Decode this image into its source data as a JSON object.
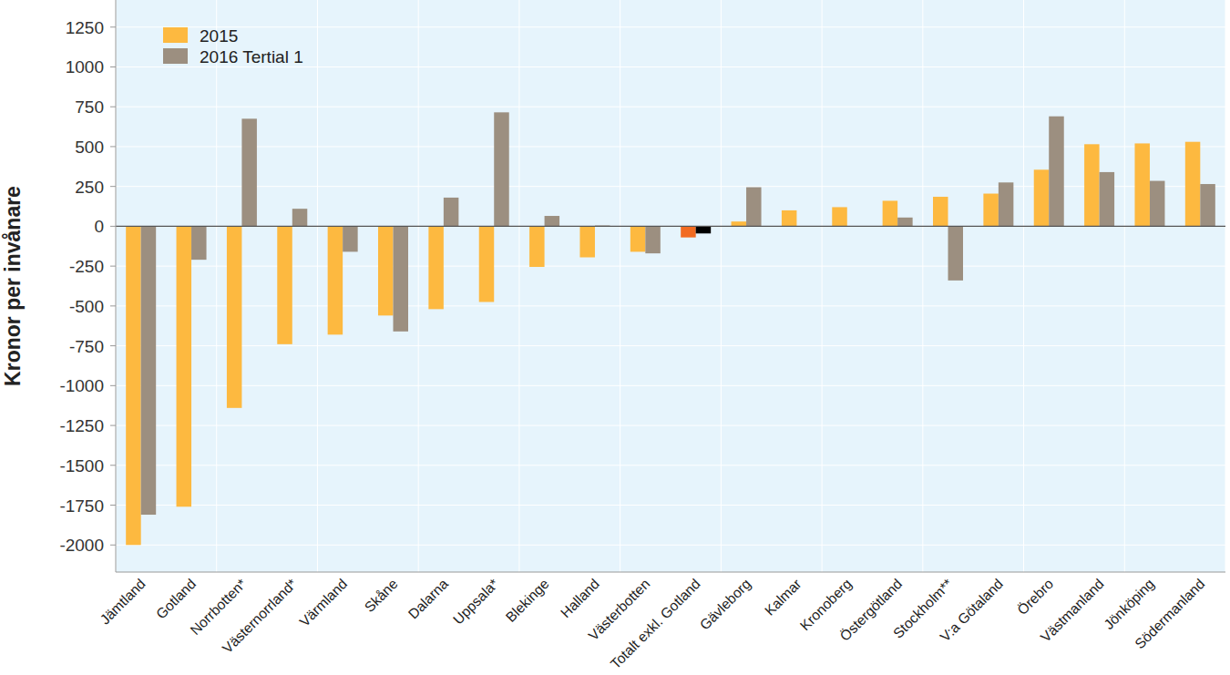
{
  "chart_data": {
    "type": "bar",
    "y_label": "Kronor per invånare",
    "categories": [
      "Jämtland",
      "Gotland",
      "Norrbotten*",
      "Västernorrland*",
      "Värmland",
      "Skåne",
      "Dalarna",
      "Uppsala*",
      "Blekinge",
      "Halland",
      "Västerbotten",
      "Totalt exkl. Gotland",
      "Gävleborg",
      "Kalmar",
      "Kronoberg",
      "Östergötland",
      "Stockholm**",
      "V:a Götaland",
      "Örebro",
      "Västmanland",
      "Jönköping",
      "Södermanland"
    ],
    "series": [
      {
        "name": "2015",
        "color": "#fdb940",
        "colors": [
          "#fdb940",
          "#fdb940",
          "#fdb940",
          "#fdb940",
          "#fdb940",
          "#fdb940",
          "#fdb940",
          "#fdb940",
          "#fdb940",
          "#fdb940",
          "#fdb940",
          "#f26b21",
          "#fdb940",
          "#fdb940",
          "#fdb940",
          "#fdb940",
          "#fdb940",
          "#fdb940",
          "#fdb940",
          "#fdb940",
          "#fdb940",
          "#fdb940"
        ],
        "values": [
          -2000,
          -1760,
          -1140,
          -740,
          -680,
          -560,
          -520,
          -475,
          -255,
          -195,
          -160,
          -70,
          30,
          100,
          120,
          160,
          185,
          205,
          355,
          515,
          520,
          530
        ]
      },
      {
        "name": "2016 Tertial 1",
        "color": "#9c8f80",
        "colors": [
          "#9c8f80",
          "#9c8f80",
          "#9c8f80",
          "#9c8f80",
          "#9c8f80",
          "#9c8f80",
          "#9c8f80",
          "#9c8f80",
          "#9c8f80",
          "#9c8f80",
          "#9c8f80",
          "#000000",
          "#9c8f80",
          "#9c8f80",
          "#9c8f80",
          "#9c8f80",
          "#9c8f80",
          "#9c8f80",
          "#9c8f80",
          "#9c8f80",
          "#9c8f80",
          "#9c8f80"
        ],
        "values": [
          -1810,
          -210,
          675,
          110,
          -160,
          -660,
          180,
          715,
          65,
          5,
          -170,
          -45,
          245,
          null,
          null,
          55,
          -340,
          275,
          690,
          340,
          285,
          265
        ]
      }
    ],
    "ylim": [
      -2170,
      1420
    ],
    "yticks": [
      -2000,
      -1750,
      -1500,
      -1250,
      -1000,
      -750,
      -500,
      -250,
      0,
      250,
      500,
      750,
      1000,
      1250
    ],
    "grid": true,
    "legend": "upper left"
  }
}
